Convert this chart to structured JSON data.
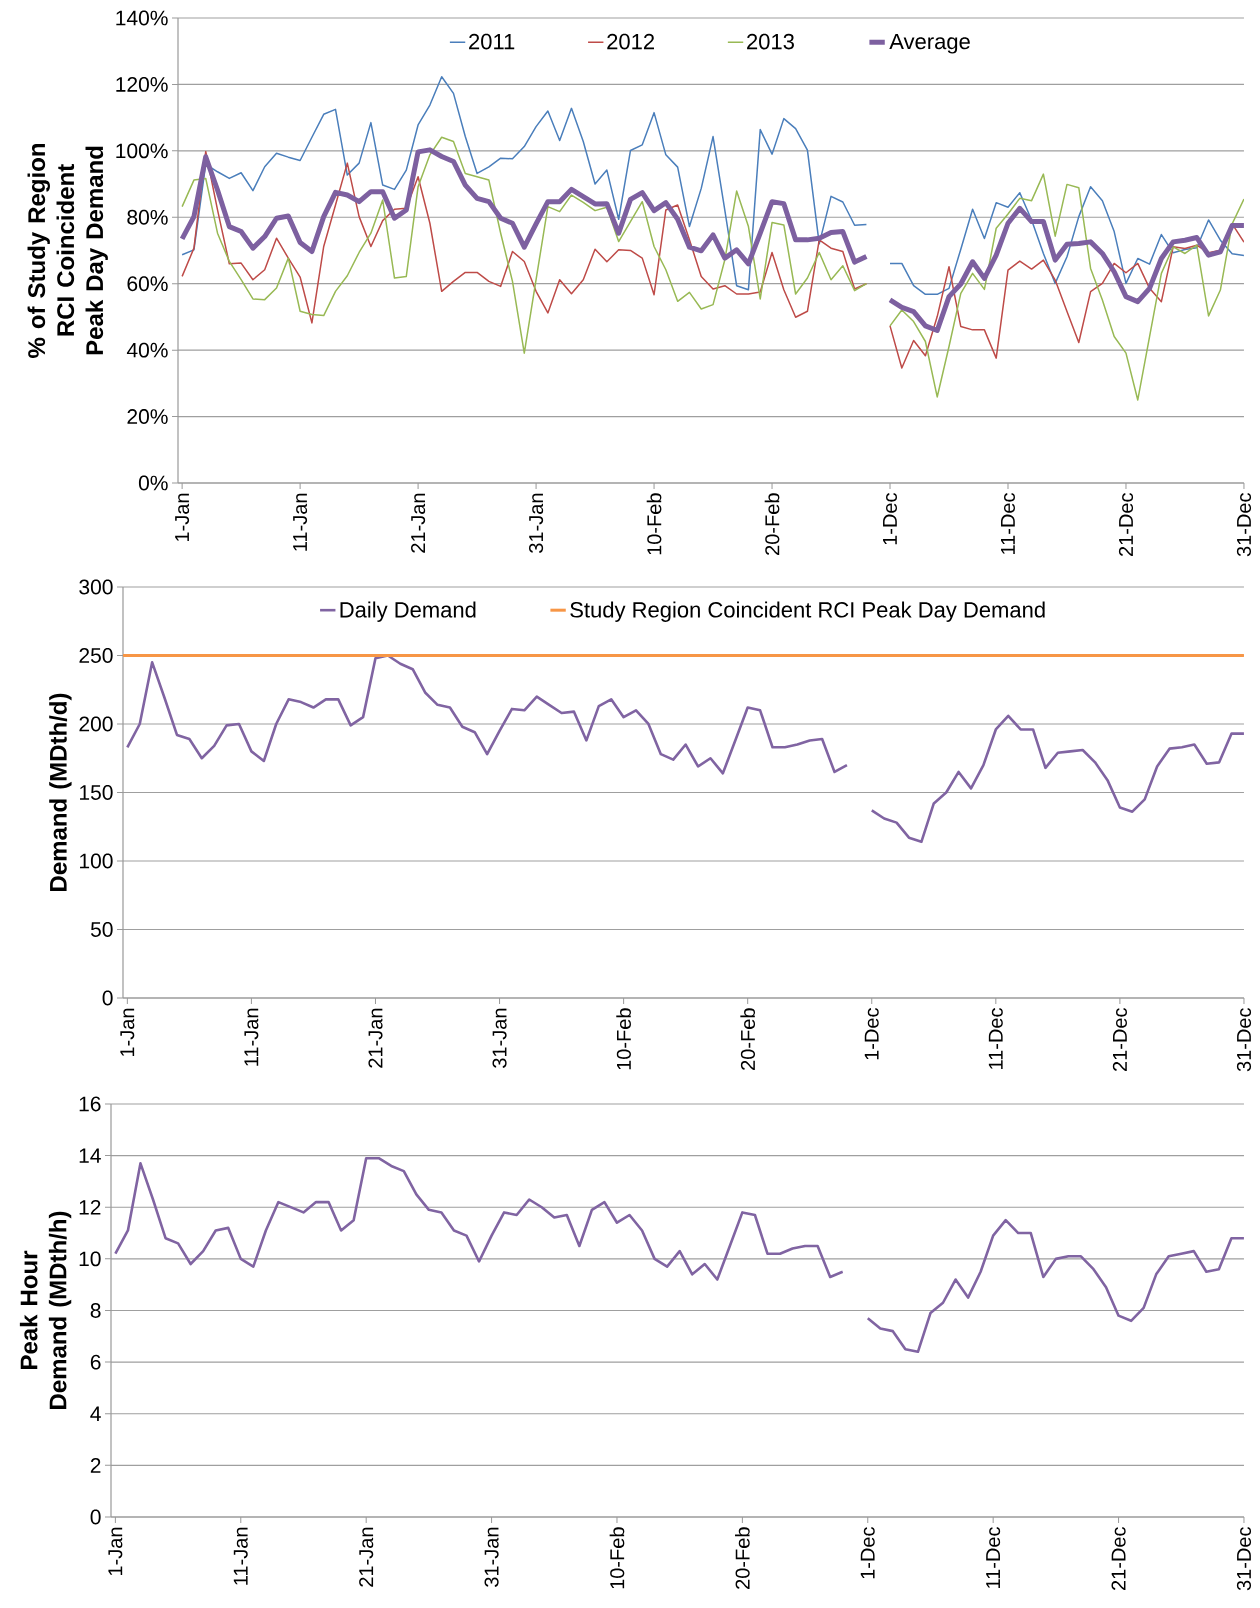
{
  "chart_data": [
    {
      "type": "line",
      "ylabel": "% of Study Region RCI Coincident Peak Day Demand",
      "grid": "y",
      "legend": "top",
      "categories": [
        "1-Jan",
        null,
        null,
        null,
        null,
        null,
        null,
        null,
        null,
        null,
        "11-Jan",
        null,
        null,
        null,
        null,
        null,
        null,
        null,
        null,
        null,
        "21-Jan",
        null,
        null,
        null,
        null,
        null,
        null,
        null,
        null,
        null,
        "31-Jan",
        null,
        null,
        null,
        null,
        null,
        null,
        null,
        null,
        null,
        "10-Feb",
        null,
        null,
        null,
        null,
        null,
        null,
        null,
        null,
        null,
        "20-Feb",
        null,
        null,
        null,
        null,
        null,
        null,
        null,
        null,
        null,
        "1-Dec",
        null,
        null,
        null,
        null,
        null,
        null,
        null,
        null,
        null,
        "11-Dec",
        null,
        null,
        null,
        null,
        null,
        null,
        null,
        null,
        null,
        "21-Dec",
        null,
        null,
        null,
        null,
        null,
        null,
        null,
        null,
        null,
        "31-Dec"
      ],
      "ylim": [
        0,
        140
      ],
      "yticks": [
        {
          "value": 0,
          "label": "0%"
        },
        {
          "value": 20,
          "label": "20%"
        },
        {
          "value": 40,
          "label": "40%"
        },
        {
          "value": 60,
          "label": "60%"
        },
        {
          "value": 80,
          "label": "80%"
        },
        {
          "value": 100,
          "label": "100%"
        },
        {
          "value": 120,
          "label": "120%"
        },
        {
          "value": 140,
          "label": "140%"
        }
      ],
      "series": [
        {
          "name": "2011",
          "color": "#4a7ebb",
          "values": [
            68.7,
            70.2,
            96.0,
            93.7,
            91.7,
            93.4,
            88.0,
            95.2,
            99.3,
            98.1,
            97.1,
            104.1,
            111.0,
            112.5,
            92.7,
            96.3,
            108.5,
            89.7,
            88.4,
            94.2,
            107.8,
            113.8,
            122.3,
            117.3,
            104.3,
            93.2,
            95.2,
            97.8,
            97.6,
            101.3,
            107.3,
            112.0,
            103.1,
            112.8,
            102.8,
            90.0,
            94.2,
            79.4,
            100.1,
            101.8,
            111.5,
            98.8,
            95.1,
            77.2,
            88.7,
            104.3,
            82.1,
            59.4,
            58.2,
            106.4,
            99.0,
            109.7,
            106.7,
            100.2,
            72.0,
            86.3,
            84.6,
            77.6,
            77.8,
            null,
            66.1,
            66.1,
            59.4,
            56.8,
            56.8,
            58.6,
            70.4,
            82.4,
            73.6,
            84.4,
            83.0,
            87.4,
            79.2,
            69.1,
            60.1,
            68.1,
            80.2,
            89.2,
            85.0,
            75.7,
            60.1,
            67.6,
            65.9,
            74.8,
            69.3,
            70.3,
            70.8,
            79.2,
            73.1,
            69.0,
            68.5
          ]
        },
        {
          "name": "2012",
          "color": "#be4b48",
          "values": [
            62.2,
            70.7,
            99.8,
            82.2,
            66.0,
            66.2,
            61.2,
            64.2,
            73.7,
            67.7,
            62.0,
            48.2,
            71.2,
            83.7,
            96.3,
            80.2,
            71.2,
            79.0,
            82.4,
            82.7,
            92.2,
            78.2,
            57.7,
            60.7,
            63.4,
            63.4,
            60.7,
            59.2,
            69.7,
            66.7,
            57.7,
            51.2,
            61.2,
            57.0,
            61.2,
            70.4,
            66.6,
            70.2,
            70.0,
            67.7,
            56.7,
            82.2,
            83.7,
            73.2,
            62.2,
            58.4,
            59.4,
            56.9,
            56.9,
            57.5,
            69.4,
            58.2,
            49.9,
            51.7,
            73.2,
            70.7,
            69.7,
            58.4,
            60.0,
            null,
            47.3,
            34.6,
            42.9,
            38.3,
            50.1,
            65.1,
            47.1,
            46.1,
            46.1,
            37.6,
            64.1,
            66.8,
            64.4,
            67.1,
            61.1,
            51.6,
            42.3,
            57.6,
            60.1,
            66.1,
            63.3,
            66.1,
            58.6,
            54.6,
            71.1,
            70.6,
            71.6,
            69.3,
            70.1,
            78.0,
            72.5
          ]
        },
        {
          "name": "2013",
          "color": "#98b954",
          "values": [
            83.2,
            91.2,
            91.7,
            75.2,
            66.7,
            61.2,
            55.4,
            55.2,
            58.7,
            67.7,
            51.7,
            50.7,
            50.4,
            57.7,
            62.4,
            69.4,
            75.2,
            85.2,
            61.7,
            62.2,
            89.2,
            98.8,
            104.1,
            102.8,
            93.2,
            92.2,
            91.2,
            75.2,
            60.7,
            39.1,
            61.2,
            83.2,
            81.7,
            86.7,
            84.5,
            82.0,
            83.0,
            72.7,
            78.7,
            84.7,
            71.2,
            64.2,
            54.7,
            57.4,
            52.4,
            53.7,
            67.2,
            87.9,
            77.2,
            55.4,
            78.4,
            77.7,
            56.9,
            61.7,
            69.4,
            61.2,
            65.4,
            57.9,
            60.0,
            null,
            47.3,
            52.1,
            48.6,
            42.6,
            25.9,
            41.1,
            57.1,
            63.1,
            58.3,
            76.7,
            81.0,
            85.7,
            85.0,
            93.0,
            74.3,
            89.9,
            88.9,
            64.6,
            55.1,
            44.1,
            39.1,
            25.0,
            44.1,
            63.1,
            71.1,
            69.1,
            71.6,
            50.3,
            58.1,
            78.0,
            85.5
          ]
        },
        {
          "name": "Average",
          "color": "#7d60a0",
          "values": [
            73.5,
            80.2,
            98.2,
            88.2,
            77.2,
            75.7,
            70.7,
            74.2,
            79.7,
            80.4,
            72.4,
            69.7,
            80.2,
            87.5,
            86.7,
            84.7,
            87.7,
            87.7,
            79.7,
            82.2,
            99.7,
            100.3,
            98.3,
            96.8,
            89.7,
            85.7,
            84.7,
            79.7,
            78.2,
            71.0,
            78.0,
            84.7,
            84.7,
            88.4,
            86.2,
            84.0,
            84.1,
            75.2,
            85.4,
            87.4,
            82.0,
            84.4,
            79.4,
            71.0,
            69.9,
            74.7,
            67.7,
            70.2,
            66.0,
            75.2,
            84.7,
            84.1,
            73.2,
            73.2,
            73.7,
            75.4,
            75.7,
            66.5,
            68.2,
            null,
            55.1,
            52.9,
            51.6,
            47.3,
            45.9,
            56.1,
            59.9,
            66.6,
            61.6,
            68.6,
            78.2,
            82.7,
            78.7,
            78.7,
            67.1,
            71.9,
            72.1,
            72.6,
            69.1,
            63.6,
            56.1,
            54.6,
            58.6,
            67.6,
            72.6,
            73.1,
            73.9,
            68.6,
            69.6,
            77.5,
            77.5
          ]
        }
      ]
    },
    {
      "type": "line",
      "ylabel": "Demand (MDth/d)",
      "grid": "y",
      "legend": "top",
      "categories": [
        "1-Jan",
        null,
        null,
        null,
        null,
        null,
        null,
        null,
        null,
        null,
        "11-Jan",
        null,
        null,
        null,
        null,
        null,
        null,
        null,
        null,
        null,
        "21-Jan",
        null,
        null,
        null,
        null,
        null,
        null,
        null,
        null,
        null,
        "31-Jan",
        null,
        null,
        null,
        null,
        null,
        null,
        null,
        null,
        null,
        "10-Feb",
        null,
        null,
        null,
        null,
        null,
        null,
        null,
        null,
        null,
        "20-Feb",
        null,
        null,
        null,
        null,
        null,
        null,
        null,
        null,
        null,
        "1-Dec",
        null,
        null,
        null,
        null,
        null,
        null,
        null,
        null,
        null,
        "11-Dec",
        null,
        null,
        null,
        null,
        null,
        null,
        null,
        null,
        null,
        "21-Dec",
        null,
        null,
        null,
        null,
        null,
        null,
        null,
        null,
        null,
        "31-Dec"
      ],
      "ylim": [
        0,
        300
      ],
      "yticks": [
        0,
        50,
        100,
        150,
        200,
        250,
        300
      ],
      "ref_lines": [
        {
          "axis": "y",
          "value": 250,
          "label": "Study Region Coincident RCI Peak Day Demand",
          "color": "#f79646"
        }
      ],
      "series": [
        {
          "name": "Daily Demand",
          "color": "#8064a2",
          "values": [
            183,
            200,
            245,
            219,
            192,
            189,
            175,
            184,
            199,
            200,
            180,
            173,
            200,
            218,
            216,
            212,
            218,
            218,
            199,
            205,
            248,
            250,
            244,
            240,
            223,
            214,
            212,
            198,
            194,
            178,
            195,
            211,
            210,
            220,
            214,
            208,
            209,
            188,
            213,
            218,
            205,
            210,
            200,
            178,
            174,
            185,
            169,
            175,
            164,
            188,
            212,
            210,
            183,
            183,
            185,
            188,
            189,
            165,
            170,
            null,
            137,
            131,
            128,
            117,
            114,
            142,
            150,
            165,
            153,
            170,
            196,
            206,
            196,
            196,
            168,
            179,
            180,
            181,
            172,
            159,
            139,
            136,
            145,
            169,
            182,
            183,
            185,
            171,
            172,
            193,
            193
          ]
        }
      ]
    },
    {
      "type": "line",
      "ylabel": "Peak Hour Demand (MDth/h)",
      "grid": "y",
      "categories": [
        "1-Jan",
        null,
        null,
        null,
        null,
        null,
        null,
        null,
        null,
        null,
        "11-Jan",
        null,
        null,
        null,
        null,
        null,
        null,
        null,
        null,
        null,
        "21-Jan",
        null,
        null,
        null,
        null,
        null,
        null,
        null,
        null,
        null,
        "31-Jan",
        null,
        null,
        null,
        null,
        null,
        null,
        null,
        null,
        null,
        "10-Feb",
        null,
        null,
        null,
        null,
        null,
        null,
        null,
        null,
        null,
        "20-Feb",
        null,
        null,
        null,
        null,
        null,
        null,
        null,
        null,
        null,
        "1-Dec",
        null,
        null,
        null,
        null,
        null,
        null,
        null,
        null,
        null,
        "11-Dec",
        null,
        null,
        null,
        null,
        null,
        null,
        null,
        null,
        null,
        "21-Dec",
        null,
        null,
        null,
        null,
        null,
        null,
        null,
        null,
        null,
        "31-Dec"
      ],
      "ylim": [
        0,
        16
      ],
      "yticks": [
        0,
        2,
        4,
        6,
        8,
        10,
        12,
        14,
        16
      ],
      "series": [
        {
          "color": "#8064a2",
          "values": [
            10.2,
            11.1,
            13.7,
            12.3,
            10.8,
            10.6,
            9.8,
            10.3,
            11.1,
            11.2,
            10.0,
            9.7,
            11.1,
            12.2,
            12.0,
            11.8,
            12.2,
            12.2,
            11.1,
            11.5,
            13.9,
            13.9,
            13.6,
            13.4,
            12.5,
            11.9,
            11.8,
            11.1,
            10.9,
            9.9,
            10.9,
            11.8,
            11.7,
            12.3,
            12.0,
            11.6,
            11.7,
            10.5,
            11.9,
            12.2,
            11.4,
            11.7,
            11.1,
            10.0,
            9.7,
            10.3,
            9.4,
            9.8,
            9.2,
            10.5,
            11.8,
            11.7,
            10.2,
            10.2,
            10.4,
            10.5,
            10.5,
            9.3,
            9.5,
            null,
            7.7,
            7.3,
            7.2,
            6.5,
            6.4,
            7.9,
            8.3,
            9.2,
            8.5,
            9.5,
            10.9,
            11.5,
            11.0,
            11.0,
            9.3,
            10.0,
            10.1,
            10.1,
            9.6,
            8.9,
            7.8,
            7.6,
            8.1,
            9.4,
            10.1,
            10.2,
            10.3,
            9.5,
            9.6,
            10.8,
            10.8
          ]
        }
      ]
    }
  ]
}
